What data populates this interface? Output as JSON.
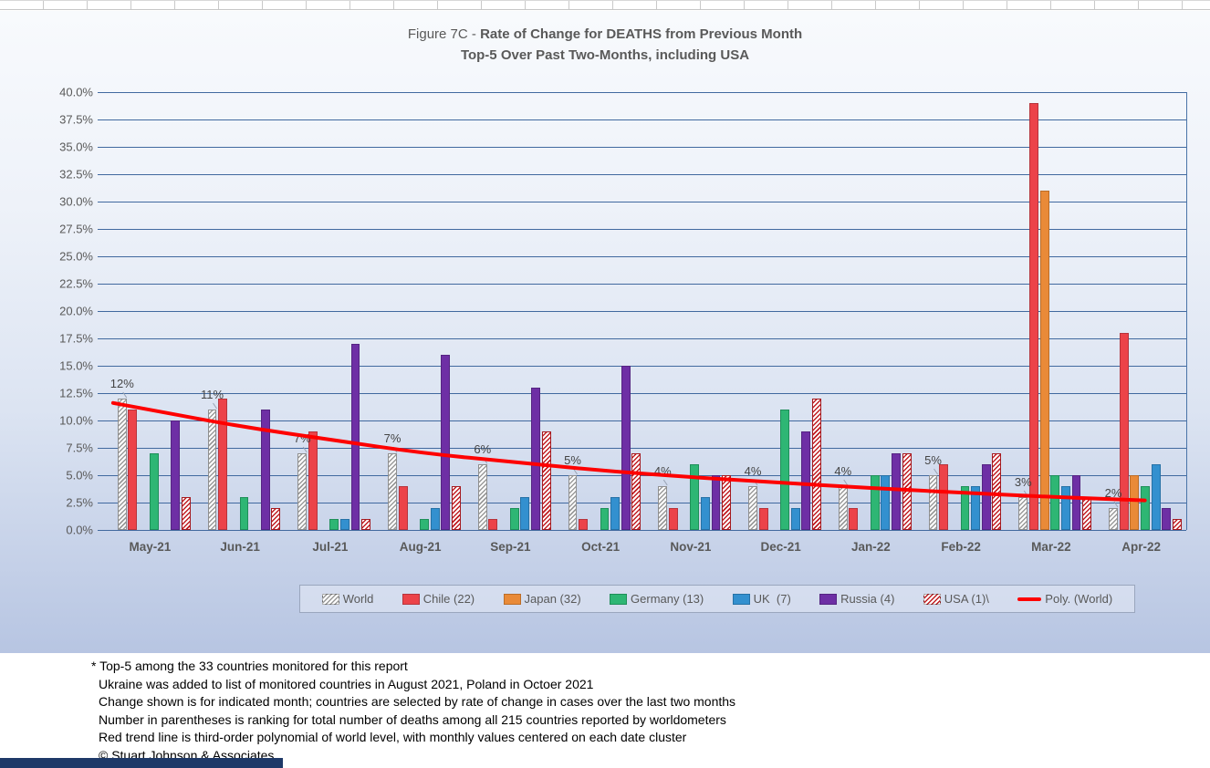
{
  "title": {
    "prefix": "Figure 7C - ",
    "bold": "Rate of Change for DEATHS from Previous Month",
    "line2": "Top-5 Over Past Two-Months, including USA"
  },
  "chart_data": {
    "type": "bar",
    "title": "Figure 7C - Rate of Change for DEATHS from Previous Month / Top-5 Over Past Two-Months, including USA",
    "categories": [
      "May-21",
      "Jun-21",
      "Jul-21",
      "Aug-21",
      "Sep-21",
      "Oct-21",
      "Nov-21",
      "Dec-21",
      "Jan-22",
      "Feb-22",
      "Mar-22",
      "Apr-22"
    ],
    "series": [
      {
        "name": "World",
        "style": "hatch-gray",
        "values": [
          12,
          11,
          7,
          7,
          6,
          5,
          4,
          4,
          4,
          5,
          3,
          2
        ],
        "data_labels": [
          "12%",
          "11%",
          "7%",
          "7%",
          "6%",
          "5%",
          "4%",
          "4%",
          "4%",
          "5%",
          "3%",
          "2%"
        ]
      },
      {
        "name": "Chile (22)",
        "fill": "#ec4349",
        "edge": "#b6343c",
        "values": [
          11,
          12,
          9,
          4,
          1,
          1,
          2,
          2,
          2,
          6,
          39,
          18
        ]
      },
      {
        "name": "Japan (32)",
        "fill": "#e98a38",
        "edge": "#bb6d28",
        "values": [
          null,
          null,
          null,
          null,
          null,
          null,
          null,
          null,
          null,
          null,
          31,
          5
        ]
      },
      {
        "name": "Germany (13)",
        "fill": "#2eb674",
        "edge": "#1f8f59",
        "values": [
          7,
          3,
          1,
          1,
          2,
          2,
          6,
          11,
          5,
          4,
          5,
          4
        ]
      },
      {
        "name": "UK  (7)",
        "fill": "#3390cf",
        "edge": "#2671a6",
        "values": [
          null,
          null,
          1,
          2,
          3,
          3,
          3,
          2,
          5,
          4,
          4,
          6
        ]
      },
      {
        "name": "Russia (4)",
        "fill": "#6e2fa5",
        "edge": "#552482",
        "values": [
          10,
          11,
          17,
          16,
          13,
          15,
          5,
          9,
          7,
          6,
          5,
          2
        ]
      },
      {
        "name": "USA (1)\\",
        "style": "hatch-red",
        "values": [
          3,
          2,
          1,
          4,
          9,
          7,
          5,
          12,
          7,
          7,
          3,
          1
        ]
      }
    ],
    "trend": {
      "name": "Poly. (World)",
      "color": "#fe0000",
      "points": [
        [
          -0.45,
          11.6
        ],
        [
          0,
          10.9
        ],
        [
          1,
          9.4
        ],
        [
          2,
          8.2
        ],
        [
          3,
          7.0
        ],
        [
          4,
          6.2
        ],
        [
          5,
          5.4
        ],
        [
          6,
          4.8
        ],
        [
          7,
          4.3
        ],
        [
          8,
          3.8
        ],
        [
          9,
          3.4
        ],
        [
          10,
          3.0
        ],
        [
          11,
          2.7
        ]
      ]
    },
    "ylim": [
      0,
      40
    ],
    "ytick_step": 2.5,
    "ytick_labels": [
      "0.0%",
      "2.5%",
      "5.0%",
      "7.5%",
      "10.0%",
      "12.5%",
      "15.0%",
      "17.5%",
      "20.0%",
      "22.5%",
      "25.0%",
      "27.5%",
      "30.0%",
      "32.5%",
      "35.0%",
      "37.5%",
      "40.0%"
    ],
    "legend_position": "bottom",
    "grid": "horizontal"
  },
  "footnotes": [
    "* Top-5 among the 33 countries monitored for this report",
    "Ukraine was added to list of monitored countries in August 2021, Poland in Octoer 2021",
    "Change shown is for indicated month; countries are selected by rate of change in cases over the last two months",
    "Number in parentheses is ranking for total number of deaths among all 215 countries reported by worldometers",
    "Red trend line is third-order polynomial of world level, with monthly values centered on each date cluster",
    "© Stuart Johnson & Associates"
  ]
}
